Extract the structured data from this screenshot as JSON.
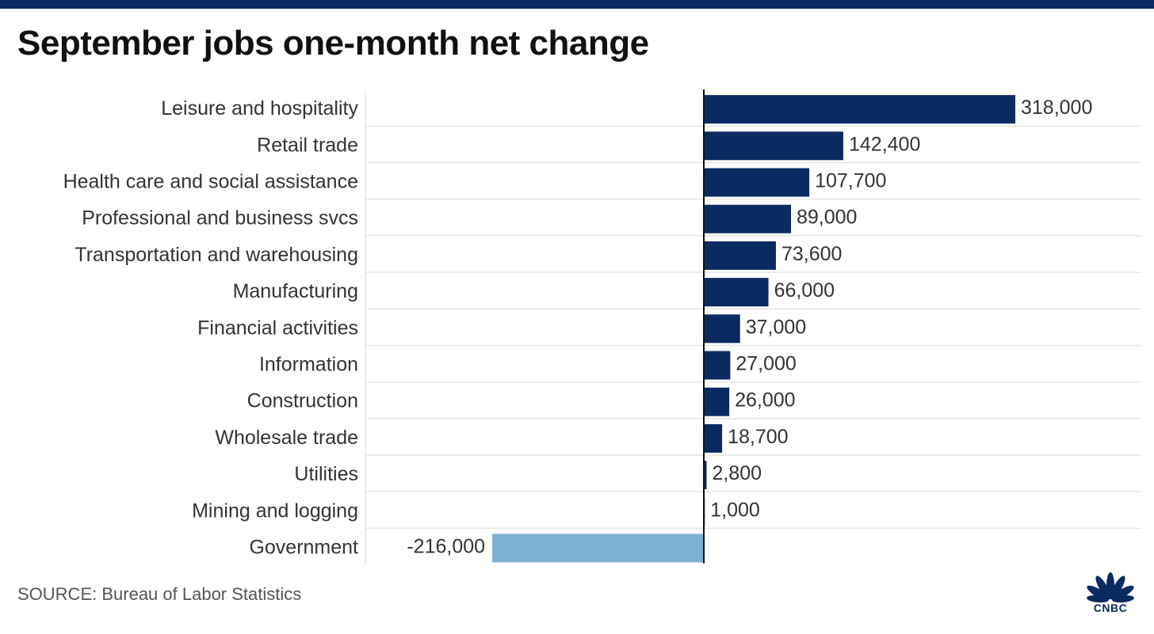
{
  "header": {
    "title": "September jobs one-month net change"
  },
  "footer": {
    "source": "SOURCE: Bureau of Labor Statistics",
    "logo_text": "CNBC"
  },
  "colors": {
    "topbar": "#0a2b61",
    "positive": "#0a2b61",
    "negative": "#7fb0d6",
    "grid": "#e6e6e6",
    "axis": "#111111"
  },
  "chart_data": {
    "type": "bar",
    "orientation": "horizontal",
    "title": "September jobs one-month net change",
    "xlabel": "",
    "ylabel": "",
    "xlim": [
      -285000,
      360000
    ],
    "categories": [
      "Leisure and hospitality",
      "Retail trade",
      "Health care and social assistance",
      "Professional and business svcs",
      "Transportation and warehousing",
      "Manufacturing",
      "Financial activities",
      "Information",
      "Construction",
      "Wholesale trade",
      "Utilities",
      "Mining and logging",
      "Government"
    ],
    "values": [
      318000,
      142400,
      107700,
      89000,
      73600,
      66000,
      37000,
      27000,
      26000,
      18700,
      2800,
      1000,
      -216000
    ],
    "value_labels": [
      "318,000",
      "142,400",
      "107,700",
      "89,000",
      "73,600",
      "66,000",
      "37,000",
      "27,000",
      "26,000",
      "18,700",
      "2,800",
      "1,000",
      "-216,000"
    ]
  }
}
